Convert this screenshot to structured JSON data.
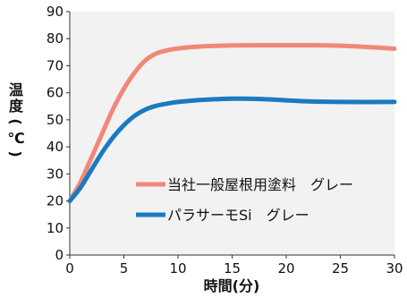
{
  "chart_data": {
    "type": "line",
    "xlabel": "時間(分)",
    "ylabel_chars": [
      "温",
      "度",
      "(",
      "℃",
      ")"
    ],
    "xlim": [
      0,
      30
    ],
    "ylim": [
      0,
      90
    ],
    "x_ticks": [
      0,
      5,
      10,
      15,
      20,
      25,
      30
    ],
    "y_ticks": [
      0,
      10,
      20,
      30,
      40,
      50,
      60,
      70,
      80,
      90
    ],
    "grid": false,
    "legend_position": "lower-right",
    "series": [
      {
        "name": "当社一般屋根用塗料　グレー",
        "color": "#f08878",
        "x": [
          0,
          1,
          2,
          3,
          4,
          5,
          6,
          7,
          8,
          9,
          10,
          12,
          15,
          18,
          20,
          22,
          25,
          28,
          30
        ],
        "y": [
          20,
          27,
          36,
          45,
          54,
          61.5,
          67.5,
          72,
          74.5,
          75.7,
          76.4,
          77.1,
          77.5,
          77.6,
          77.6,
          77.6,
          77.4,
          76.8,
          76.3
        ]
      },
      {
        "name": "パラサーモSi　グレー",
        "color": "#1a7ac0",
        "x": [
          0,
          1,
          2,
          3,
          4,
          5,
          6,
          7,
          8,
          9,
          10,
          12,
          14,
          15,
          16,
          18,
          20,
          22,
          25,
          30
        ],
        "y": [
          20,
          25,
          31.5,
          38,
          43.5,
          48,
          51.5,
          53.8,
          55.2,
          56,
          56.6,
          57.3,
          57.7,
          57.8,
          57.8,
          57.6,
          57.2,
          56.8,
          56.6,
          56.6
        ]
      }
    ]
  }
}
